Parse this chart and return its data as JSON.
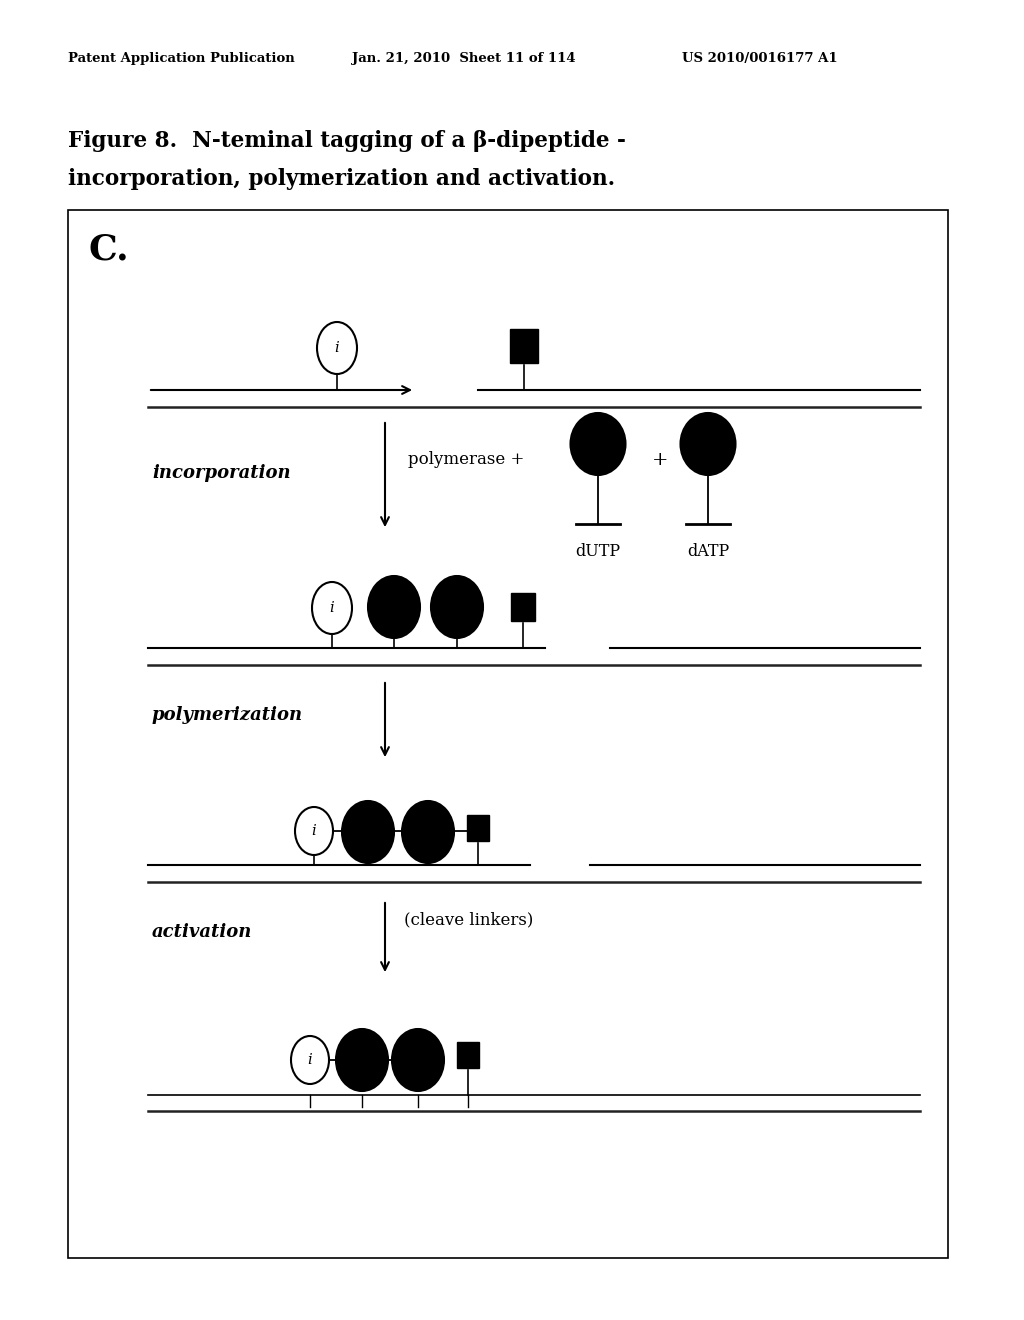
{
  "title_line1": "Figure 8.  N-teminal tagging of a β-dipeptide -",
  "title_line2": "incorporation, polymerization and activation.",
  "header_left": "Patent Application Publication",
  "header_mid": "Jan. 21, 2010  Sheet 11 of 114",
  "header_right": "US 2010/0016177 A1",
  "panel_label": "C.",
  "bg_color": "#ffffff",
  "section1_label": "incorporation",
  "section2_label": "polymerization",
  "section3_label": "activation",
  "polymerase_label": "polymerase +",
  "dutp_label": "dUTP",
  "datp_label": "dATP",
  "cleave_label": "(cleave linkers)"
}
